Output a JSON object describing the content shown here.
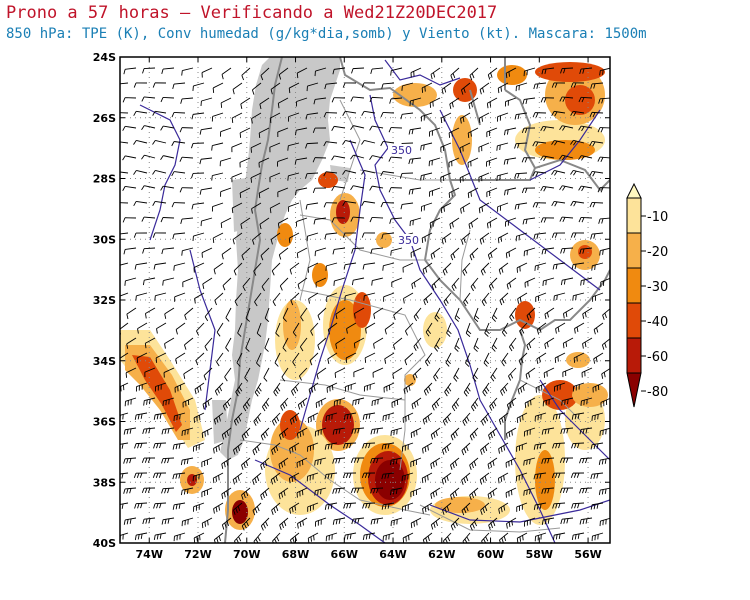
{
  "title": {
    "line1": "Prono a 57 horas — Verificando a Wed21Z20DEC2017",
    "line2": "850 hPa: TPE (K), Conv humedad (g/kg*dia,somb) y Viento (kt). Mascara: 1500m"
  },
  "colors": {
    "title1": "#c0142a",
    "title2": "#1a7fb5",
    "mask": "#c8c8c8",
    "contour": "#3a2a9a",
    "border": "#888888",
    "grid": "#888888"
  },
  "axes": {
    "lat_ticks": [
      "24S",
      "26S",
      "28S",
      "30S",
      "32S",
      "34S",
      "36S",
      "38S",
      "40S"
    ],
    "lon_ticks": [
      "74W",
      "72W",
      "70W",
      "68W",
      "66W",
      "64W",
      "62W",
      "60W",
      "58W",
      "56W"
    ],
    "lat_range": [
      -40,
      -24
    ],
    "lon_range": [
      -75.2,
      -55.1
    ],
    "grid": true
  },
  "contour_labels": [
    "350",
    "350"
  ],
  "colorbar": {
    "labels": [
      "-10",
      "-20",
      "-30",
      "-40",
      "-60",
      "-80"
    ],
    "colors": [
      "#fff8c0",
      "#fde39a",
      "#f6b04a",
      "#f08a10",
      "#e04a08",
      "#b81a08",
      "#8a0000"
    ]
  }
}
